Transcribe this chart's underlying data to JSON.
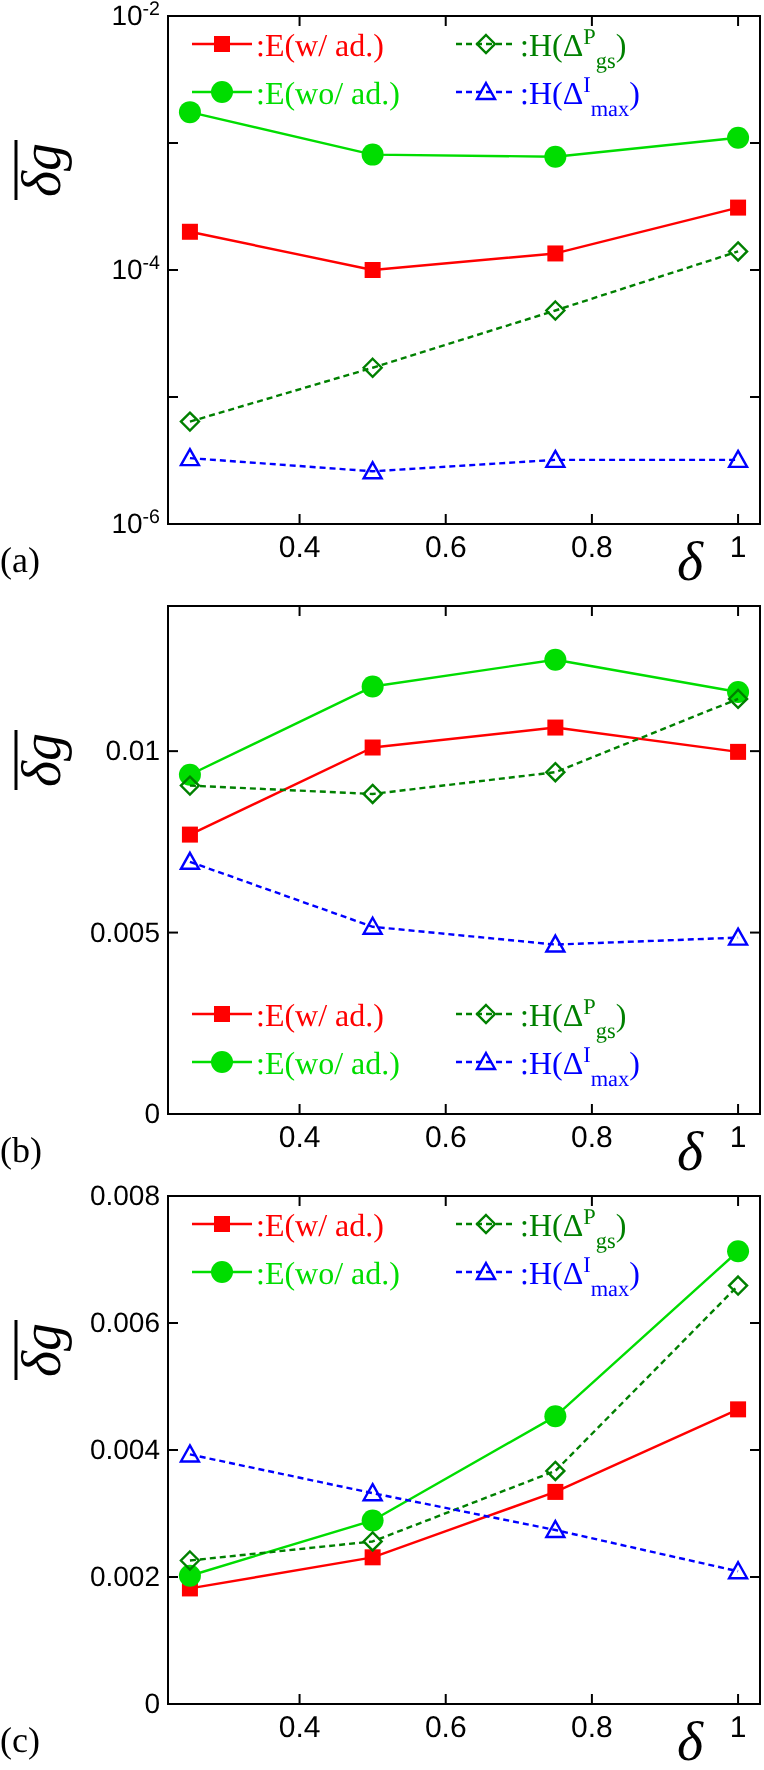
{
  "chart_data": [
    {
      "type": "line",
      "ylabel": "δg",
      "xlabel": "δ",
      "annotations": [
        "(a)"
      ],
      "log": "y",
      "legend": "top",
      "grid": false,
      "x": [
        0.25,
        0.5,
        0.75,
        1
      ],
      "xlim": [
        0.22,
        1.03
      ],
      "xticks": [
        0.4,
        0.6,
        0.8,
        1
      ],
      "ylim": [
        1e-06,
        0.01
      ],
      "yticks": [
        {
          "value": 1e-06,
          "label": "10$^{-6}$"
        },
        {
          "value": 1e-05,
          "label": null
        },
        {
          "value": 0.0001,
          "label": "10$^{-4}$"
        },
        {
          "value": 0.001,
          "label": null
        },
        {
          "value": 0.01,
          "label": "10$^{-2}$"
        }
      ],
      "series": [
        {
          "name": ":E(w/ ad.)",
          "color": "#ff0000",
          "marker": "square",
          "line_style": "solid",
          "values": [
            0.0002,
            0.0001,
            0.000135,
            0.00031
          ]
        },
        {
          "name": ":E(wo/ ad.)",
          "color": "#00dd00",
          "marker": "circle",
          "line_style": "solid",
          "values": [
            0.00175,
            0.00081,
            0.00078,
            0.0011
          ]
        },
        {
          "name": ":H(Δ$^{P}$$_{gs}$)",
          "color": "#008000",
          "marker": "diamond",
          "line_style": "dashed",
          "values": [
            6.4e-06,
            1.7e-05,
            4.8e-05,
            0.00014
          ]
        },
        {
          "name": ":H(Δ$^{I}$$_{max}$)",
          "color": "#0000ff",
          "marker": "triangle",
          "line_style": "dashed",
          "values": [
            3.3e-06,
            2.6e-06,
            3.2e-06,
            3.2e-06
          ]
        }
      ]
    },
    {
      "type": "line",
      "ylabel": "δg",
      "xlabel": "δ",
      "annotations": [
        "(b)"
      ],
      "legend": "bottom left",
      "grid": false,
      "x": [
        0.25,
        0.5,
        0.75,
        1
      ],
      "xlim": [
        0.22,
        1.03
      ],
      "xticks": [
        0.4,
        0.6,
        0.8,
        1
      ],
      "ylim": [
        0,
        0.014
      ],
      "yticks": [
        0,
        0.005,
        0.01
      ],
      "series": [
        {
          "name": ":E(w/ ad.)",
          "color": "#ff0000",
          "marker": "square",
          "line_style": "solid",
          "values": [
            0.0077,
            0.0101,
            0.01065,
            0.00998
          ]
        },
        {
          "name": ":E(wo/ ad.)",
          "color": "#00dd00",
          "marker": "circle",
          "line_style": "solid",
          "values": [
            0.00935,
            0.01178,
            0.01252,
            0.01163
          ]
        },
        {
          "name": ":H(Δ$^{P}$$_{gs}$)",
          "color": "#008000",
          "marker": "diamond",
          "line_style": "dashed",
          "values": [
            0.00905,
            0.00882,
            0.00942,
            0.01144
          ]
        },
        {
          "name": ":H(Δ$^{I}$$_{max}$)",
          "color": "#0000ff",
          "marker": "triangle",
          "line_style": "dashed",
          "values": [
            0.00695,
            0.00516,
            0.00467,
            0.00486
          ]
        }
      ]
    },
    {
      "type": "line",
      "ylabel": "δg",
      "xlabel": "δ",
      "annotations": [
        "(c)"
      ],
      "legend": "top left",
      "grid": false,
      "x": [
        0.25,
        0.5,
        0.75,
        1
      ],
      "xlim": [
        0.22,
        1.03
      ],
      "xticks": [
        0.4,
        0.6,
        0.8,
        1
      ],
      "ylim": [
        0,
        0.008
      ],
      "yticks": [
        0,
        0.002,
        0.004,
        0.006,
        0.008
      ],
      "series": [
        {
          "name": ":E(w/ ad.)",
          "color": "#ff0000",
          "marker": "square",
          "line_style": "solid",
          "values": [
            0.00182,
            0.00231,
            0.00334,
            0.00464
          ]
        },
        {
          "name": ":E(wo/ ad.)",
          "color": "#00dd00",
          "marker": "circle",
          "line_style": "solid",
          "values": [
            0.00202,
            0.00289,
            0.00453,
            0.00713
          ]
        },
        {
          "name": ":H(Δ$^{P}$$_{gs}$)",
          "color": "#008000",
          "marker": "diamond",
          "line_style": "dashed",
          "values": [
            0.00226,
            0.00256,
            0.00367,
            0.00659
          ]
        },
        {
          "name": ":H(Δ$^{I}$$_{max}$)",
          "color": "#0000ff",
          "marker": "triangle",
          "line_style": "dashed",
          "values": [
            0.00393,
            0.00332,
            0.00274,
            0.00209
          ]
        }
      ]
    }
  ]
}
